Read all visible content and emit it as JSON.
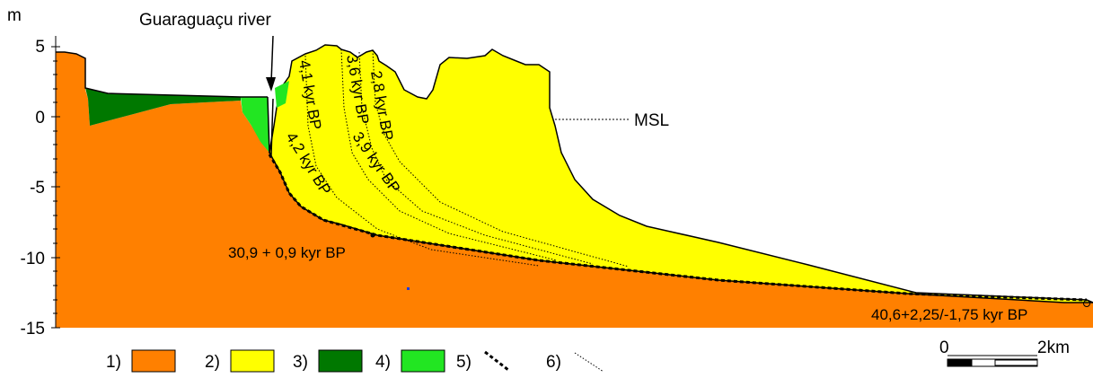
{
  "y_axis": {
    "unit": "m",
    "ticks": [
      "5",
      "0",
      "-5",
      "-10",
      "-15"
    ]
  },
  "river_label": "Guaraguaçu river",
  "msl_label": "MSL",
  "ages": {
    "a41": "4,1 kyr BP",
    "a36": "3,6 kyr BP",
    "a28": "2,8 kyr BP",
    "a42": "4,2 kyr BP",
    "a39": "3,9 kyr BP",
    "a309": "30,9 + 0,9 kyr BP",
    "a406": "40,6+2,25/-1,75 kyr BP"
  },
  "legend": [
    {
      "label": "1)",
      "color": "#ff8000"
    },
    {
      "label": "2)",
      "color": "#ffff00"
    },
    {
      "label": "3)",
      "color": "#007800"
    },
    {
      "label": "4)",
      "color": "#22e622"
    },
    {
      "label": "5)",
      "style": "thick-dashed"
    },
    {
      "label": "6)",
      "style": "thin-dotted"
    }
  ],
  "scale": {
    "zero": "0",
    "end": "2km"
  }
}
